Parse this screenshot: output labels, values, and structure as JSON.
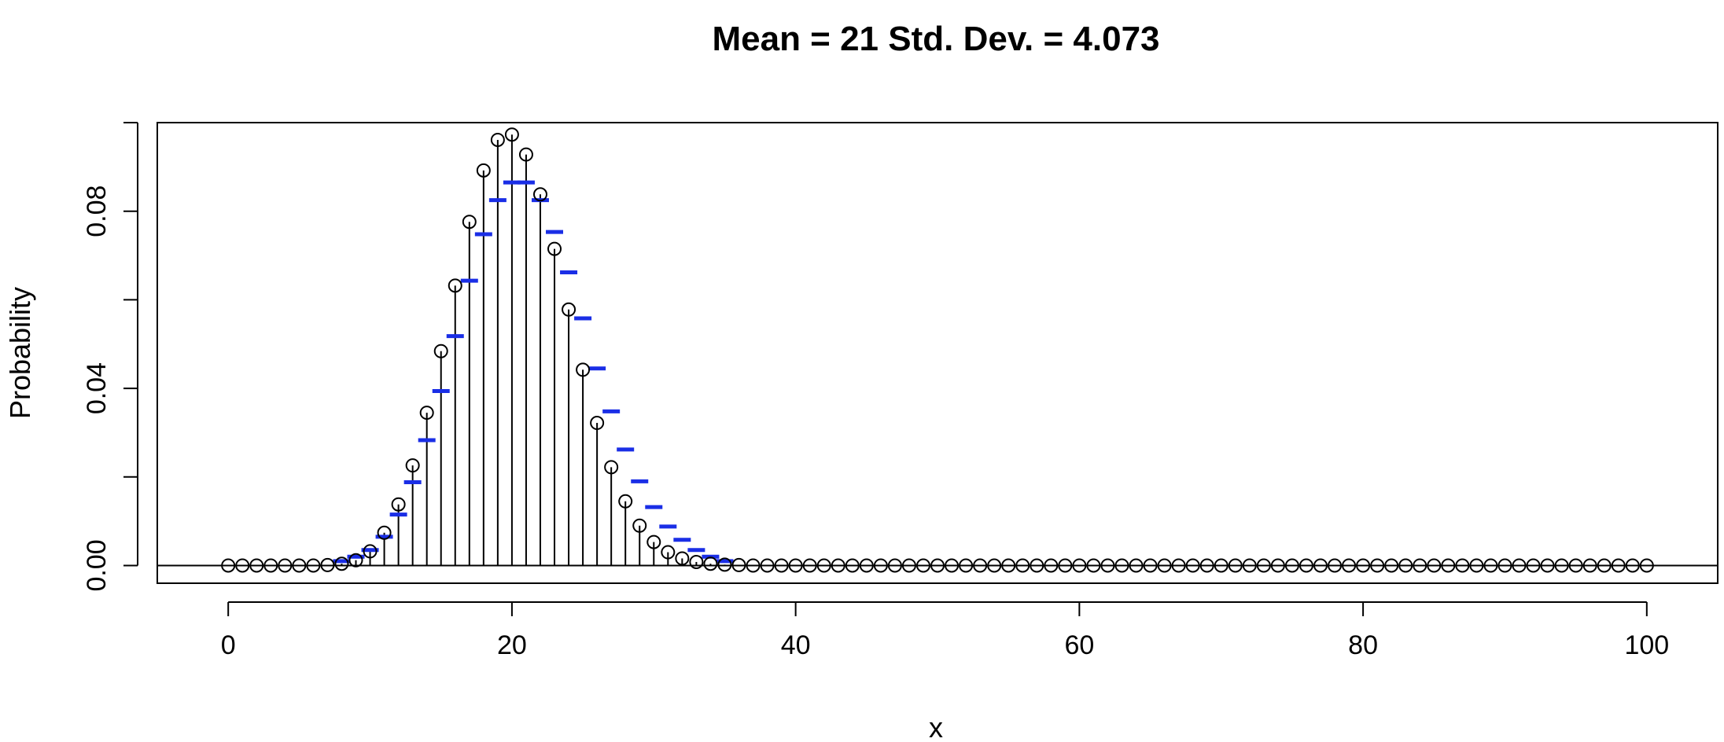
{
  "chart_data": {
    "type": "line",
    "title": "Mean = 21 Std. Dev. = 4.073",
    "xlabel": "x",
    "ylabel": "Probability",
    "xlim": [
      -5,
      105
    ],
    "ylim": [
      -0.004,
      0.1
    ],
    "x_ticks": [
      0,
      20,
      40,
      60,
      80,
      100
    ],
    "x_tick_labels": [
      "0",
      "20",
      "40",
      "60",
      "80",
      "100"
    ],
    "y_ticks": [
      0.0,
      0.02,
      0.04,
      0.06,
      0.08,
      0.1
    ],
    "y_tick_labels": [
      "0.00",
      "",
      "0.04",
      "",
      "0.08",
      ""
    ],
    "grid": false,
    "series": [
      {
        "kind": "stem-points",
        "color": "#000000",
        "x": [
          0,
          1,
          2,
          3,
          4,
          5,
          6,
          7,
          8,
          9,
          10,
          11,
          12,
          13,
          14,
          15,
          16,
          17,
          18,
          19,
          20,
          21,
          22,
          23,
          24,
          25,
          26,
          27,
          28,
          29,
          30,
          31,
          32,
          33,
          34,
          35,
          36,
          37,
          38,
          39,
          40,
          41,
          42,
          43,
          44,
          45,
          46,
          47,
          48,
          49,
          50,
          51,
          52,
          53,
          54,
          55,
          56,
          57,
          58,
          59,
          60,
          61,
          62,
          63,
          64,
          65,
          66,
          67,
          68,
          69,
          70,
          71,
          72,
          73,
          74,
          75,
          76,
          77,
          78,
          79,
          80,
          81,
          82,
          83,
          84,
          85,
          86,
          87,
          88,
          89,
          90,
          91,
          92,
          93,
          94,
          95,
          96,
          97,
          98,
          99,
          100
        ],
        "values": [
          0,
          0,
          0,
          0,
          0,
          0,
          0,
          0.0001,
          0.0004,
          0.0012,
          0.0032,
          0.0074,
          0.0138,
          0.0226,
          0.0345,
          0.0484,
          0.0632,
          0.0776,
          0.0892,
          0.0961,
          0.0973,
          0.0928,
          0.0838,
          0.0715,
          0.0578,
          0.0442,
          0.0322,
          0.0222,
          0.0145,
          0.009,
          0.0053,
          0.003,
          0.0016,
          0.0008,
          0.0004,
          0.0002,
          0.0001,
          0,
          0,
          0,
          0,
          0,
          0,
          0,
          0,
          0,
          0,
          0,
          0,
          0,
          0,
          0,
          0,
          0,
          0,
          0,
          0,
          0,
          0,
          0,
          0,
          0,
          0,
          0,
          0,
          0,
          0,
          0,
          0,
          0,
          0,
          0,
          0,
          0,
          0,
          0,
          0,
          0,
          0,
          0,
          0,
          0,
          0,
          0,
          0,
          0,
          0,
          0,
          0,
          0,
          0,
          0,
          0,
          0,
          0,
          0,
          0,
          0,
          0,
          0,
          0
        ]
      },
      {
        "kind": "bar-markers",
        "color": "#1a2ee6",
        "x": [
          8,
          9,
          10,
          11,
          12,
          13,
          14,
          15,
          16,
          17,
          18,
          19,
          20,
          21,
          22,
          23,
          24,
          25,
          26,
          27,
          28,
          29,
          30,
          31,
          32,
          33,
          34,
          35
        ],
        "values": [
          0.001,
          0.002,
          0.0035,
          0.0065,
          0.0115,
          0.0188,
          0.0283,
          0.0394,
          0.0518,
          0.0643,
          0.0748,
          0.0825,
          0.0865,
          0.0865,
          0.0825,
          0.0753,
          0.0662,
          0.0558,
          0.0445,
          0.0348,
          0.0262,
          0.019,
          0.0132,
          0.0088,
          0.0058,
          0.0035,
          0.002,
          0.001
        ]
      }
    ]
  }
}
